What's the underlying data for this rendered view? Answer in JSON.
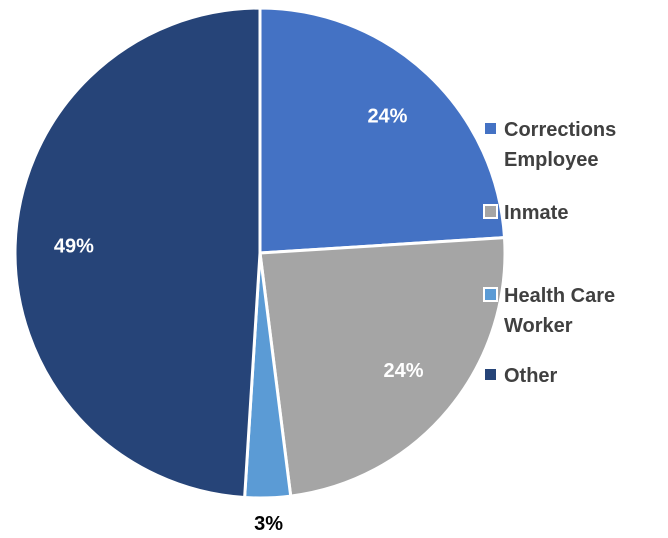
{
  "chart_data": {
    "type": "pie",
    "categories": [
      "Corrections Employee",
      "Inmate",
      "Health Care Worker",
      "Other"
    ],
    "values": [
      24,
      24,
      3,
      49
    ],
    "value_labels": [
      "24%",
      "24%",
      "3%",
      "49%"
    ],
    "colors": [
      "#4472c4",
      "#a5a5a5",
      "#5b9bd5",
      "#264478"
    ],
    "legend": "right"
  }
}
